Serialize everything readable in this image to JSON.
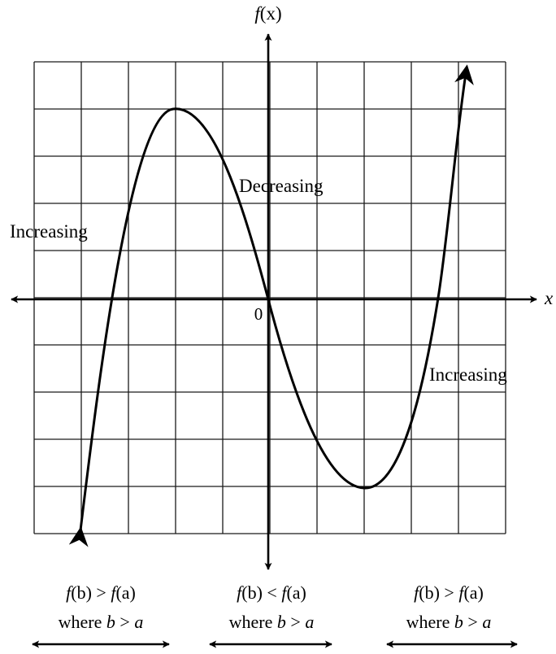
{
  "diagram": {
    "axis_labels": {
      "y_f": "f",
      "y_x": "(x)",
      "x": "x",
      "origin": "0"
    },
    "region_labels": {
      "left": "Increasing",
      "middle": "Decreasing",
      "right": "Increasing"
    },
    "conditions": [
      {
        "f1": "f",
        "b1": "(b)",
        "op": " > ",
        "f2": "f",
        "a2": "(a)",
        "w": "where ",
        "bw": "b",
        "opw": " > ",
        "aw": "a"
      },
      {
        "f1": "f",
        "b1": "(b)",
        "op": " < ",
        "f2": "f",
        "a2": "(a)",
        "w": "where ",
        "bw": "b",
        "opw": " > ",
        "aw": "a"
      },
      {
        "f1": "f",
        "b1": "(b)",
        "op": " > ",
        "f2": "f",
        "a2": "(a)",
        "w": "where ",
        "bw": "b",
        "opw": " > ",
        "aw": "a"
      }
    ]
  },
  "colors": {
    "curve": "#000000",
    "grid": "#1a1a1a",
    "text": "#000000",
    "background": "#ffffff"
  }
}
